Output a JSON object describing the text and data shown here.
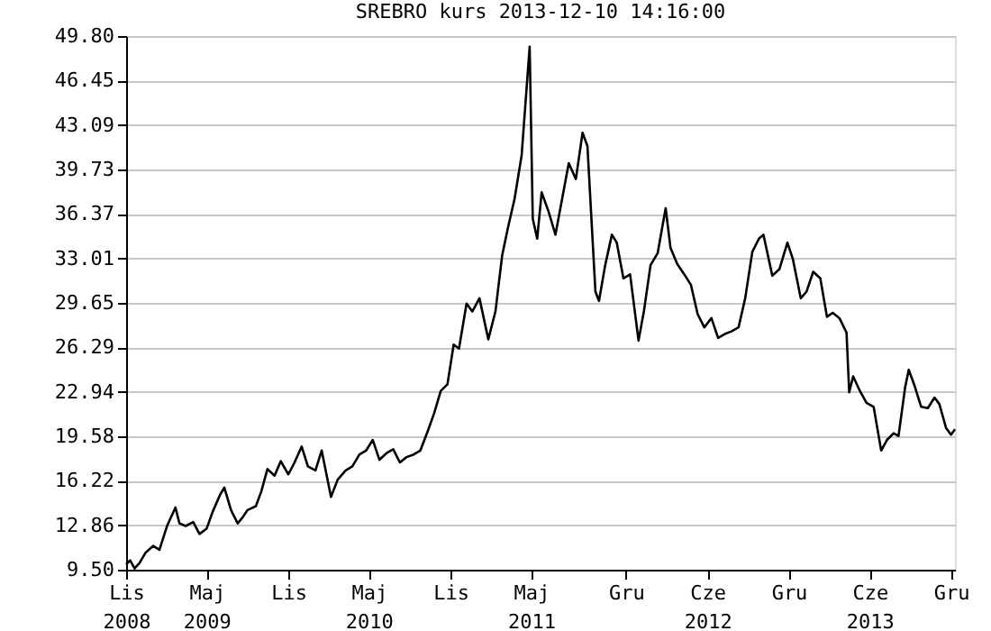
{
  "chart_data": {
    "type": "line",
    "title": "SREBRO kurs  2013-12-10 14:16:00",
    "color": "#000000",
    "line_style": "solid",
    "grid": "y",
    "x": [
      "2008-11-01",
      "2008-11-10",
      "2008-11-20",
      "2008-12-01",
      "2008-12-15",
      "2009-01-01",
      "2009-01-15",
      "2009-02-01",
      "2009-02-20",
      "2009-03-01",
      "2009-03-15",
      "2009-04-01",
      "2009-04-15",
      "2009-05-01",
      "2009-05-15",
      "2009-06-01",
      "2009-06-10",
      "2009-06-25",
      "2009-07-10",
      "2009-07-20",
      "2009-08-01",
      "2009-08-20",
      "2009-09-01",
      "2009-09-15",
      "2009-10-01",
      "2009-10-15",
      "2009-11-01",
      "2009-11-15",
      "2009-12-01",
      "2009-12-15",
      "2010-01-01",
      "2010-01-15",
      "2010-02-05",
      "2010-02-20",
      "2010-03-10",
      "2010-03-25",
      "2010-04-10",
      "2010-04-25",
      "2010-05-10",
      "2010-05-25",
      "2010-06-10",
      "2010-06-25",
      "2010-07-10",
      "2010-07-25",
      "2010-08-10",
      "2010-08-25",
      "2010-09-10",
      "2010-09-25",
      "2010-10-10",
      "2010-10-25",
      "2010-11-08",
      "2010-11-20",
      "2010-12-07",
      "2010-12-20",
      "2011-01-05",
      "2011-01-25",
      "2011-02-10",
      "2011-02-25",
      "2011-03-10",
      "2011-03-25",
      "2011-04-10",
      "2011-04-28",
      "2011-05-05",
      "2011-05-15",
      "2011-05-25",
      "2011-06-10",
      "2011-06-25",
      "2011-07-10",
      "2011-07-25",
      "2011-08-10",
      "2011-08-25",
      "2011-09-05",
      "2011-09-23",
      "2011-10-01",
      "2011-10-15",
      "2011-10-30",
      "2011-11-10",
      "2011-11-25",
      "2011-12-10",
      "2011-12-29",
      "2012-01-10",
      "2012-01-25",
      "2012-02-10",
      "2012-02-28",
      "2012-03-10",
      "2012-03-25",
      "2012-04-10",
      "2012-04-25",
      "2012-05-10",
      "2012-05-25",
      "2012-06-10",
      "2012-06-25",
      "2012-07-10",
      "2012-07-25",
      "2012-08-10",
      "2012-08-25",
      "2012-09-10",
      "2012-09-25",
      "2012-10-05",
      "2012-10-25",
      "2012-11-10",
      "2012-11-28",
      "2012-12-10",
      "2012-12-28",
      "2013-01-10",
      "2013-01-25",
      "2013-02-10",
      "2013-02-25",
      "2013-03-10",
      "2013-03-25",
      "2013-04-10",
      "2013-04-16",
      "2013-04-25",
      "2013-05-10",
      "2013-05-25",
      "2013-06-10",
      "2013-06-27",
      "2013-07-10",
      "2013-07-25",
      "2013-08-05",
      "2013-08-20",
      "2013-08-28",
      "2013-09-10",
      "2013-09-25",
      "2013-10-10",
      "2013-10-25",
      "2013-11-05",
      "2013-11-20",
      "2013-12-01",
      "2013-12-10"
    ],
    "values": [
      9.9,
      10.2,
      9.6,
      10.0,
      10.8,
      11.3,
      11.0,
      12.8,
      14.2,
      13.0,
      12.8,
      13.1,
      12.2,
      12.6,
      13.9,
      15.2,
      15.7,
      14.0,
      13.0,
      13.4,
      14.0,
      14.3,
      15.4,
      17.1,
      16.6,
      17.7,
      16.7,
      17.6,
      18.8,
      17.3,
      17.0,
      18.5,
      15.0,
      16.3,
      17.0,
      17.3,
      18.2,
      18.5,
      19.3,
      17.8,
      18.3,
      18.6,
      17.6,
      18.0,
      18.2,
      18.5,
      19.9,
      21.3,
      23.0,
      23.5,
      26.5,
      26.2,
      29.6,
      29.0,
      30.0,
      26.9,
      29.0,
      33.2,
      35.3,
      37.5,
      40.8,
      49.0,
      36.0,
      34.5,
      38.0,
      36.5,
      34.8,
      37.5,
      40.2,
      39.0,
      42.5,
      41.5,
      30.5,
      29.8,
      32.5,
      34.8,
      34.2,
      31.5,
      31.8,
      26.8,
      29.0,
      32.5,
      33.4,
      36.8,
      33.8,
      32.6,
      31.8,
      31.0,
      28.8,
      27.8,
      28.5,
      27.0,
      27.3,
      27.5,
      27.8,
      30.0,
      33.5,
      34.5,
      34.8,
      31.7,
      32.2,
      34.2,
      33.0,
      30.0,
      30.5,
      32.0,
      31.5,
      28.6,
      28.9,
      28.5,
      27.4,
      22.9,
      24.1,
      23.0,
      22.1,
      21.8,
      18.5,
      19.3,
      19.8,
      19.6,
      23.3,
      24.6,
      23.4,
      21.8,
      21.7,
      22.5,
      22.0,
      20.2,
      19.7,
      20.1
    ],
    "xlim": [
      "2008-11-01",
      "2013-12-10"
    ],
    "xticks": [
      {
        "value": "2008-11-01",
        "label": "Lis 2008"
      },
      {
        "value": "2009-05-01",
        "label": "Maj 2009"
      },
      {
        "value": "2009-11-01",
        "label": "Lis"
      },
      {
        "value": "2010-05-01",
        "label": "Maj 2010"
      },
      {
        "value": "2010-11-01",
        "label": "Lis"
      },
      {
        "value": "2011-05-01",
        "label": "Maj 2011"
      },
      {
        "value": "2011-12-01",
        "label": "Gru"
      },
      {
        "value": "2012-06-01",
        "label": "Cze 2012"
      },
      {
        "value": "2012-12-01",
        "label": "Gru"
      },
      {
        "value": "2013-06-01",
        "label": "Cze 2013"
      },
      {
        "value": "2013-12-01",
        "label": "Gru"
      }
    ],
    "ylim": [
      9.5,
      49.8
    ],
    "yticks": [
      {
        "value": 9.5,
        "label": "9.50"
      },
      {
        "value": 12.86,
        "label": "12.86"
      },
      {
        "value": 16.22,
        "label": "16.22"
      },
      {
        "value": 19.58,
        "label": "19.58"
      },
      {
        "value": 22.94,
        "label": "22.94"
      },
      {
        "value": 26.29,
        "label": "26.29"
      },
      {
        "value": 29.65,
        "label": "29.65"
      },
      {
        "value": 33.01,
        "label": "33.01"
      },
      {
        "value": 36.37,
        "label": "36.37"
      },
      {
        "value": 39.73,
        "label": "39.73"
      },
      {
        "value": 43.09,
        "label": "43.09"
      },
      {
        "value": 46.45,
        "label": "46.45"
      },
      {
        "value": 49.8,
        "label": "49.80"
      }
    ]
  }
}
